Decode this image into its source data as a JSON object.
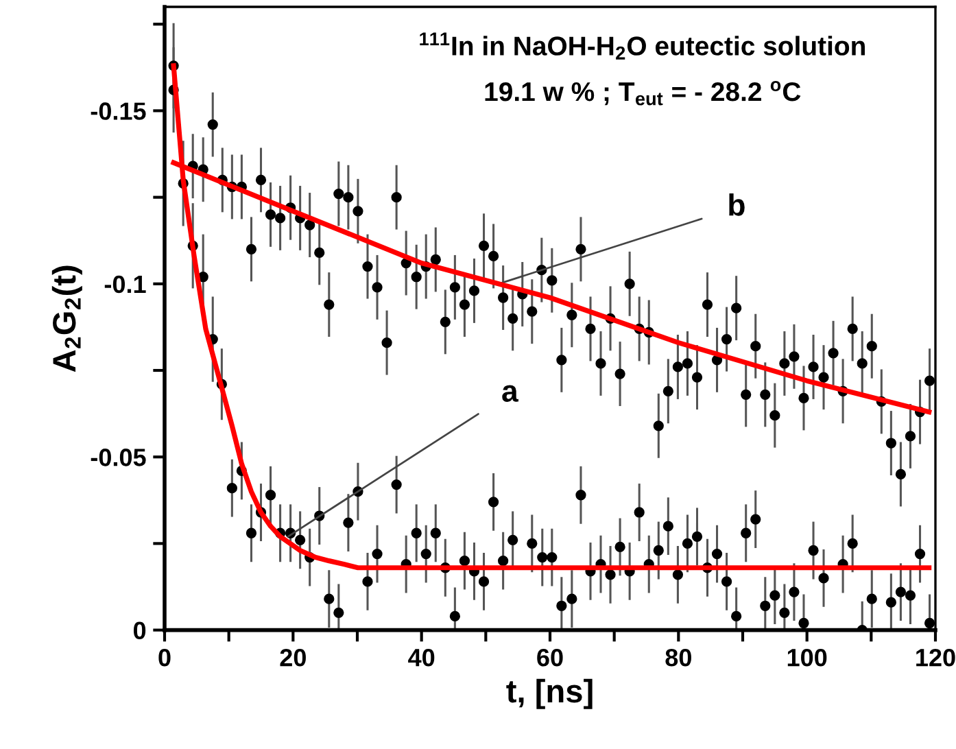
{
  "chart_data": {
    "type": "scatter",
    "title": "$^{111}$In in NaOH-H$_{2}$O eutectic solution",
    "subtitle": "19.1 w % ; T$_{eut}$ = - 28.2 $^{o}$C",
    "xlabel": "t, [ns]",
    "ylabel": "A$_{2}$G$_{2}$(t)",
    "xlim": [
      0,
      120
    ],
    "ylim": [
      0,
      -0.18
    ],
    "xticks": [
      0,
      {
        "value": 10,
        "label": null
      },
      20,
      {
        "value": 30,
        "label": null
      },
      40,
      {
        "value": 50,
        "label": null
      },
      60,
      {
        "value": 70,
        "label": null
      },
      80,
      {
        "value": 90,
        "label": null
      },
      100,
      {
        "value": 110,
        "label": null
      },
      120
    ],
    "yticks": [
      0,
      {
        "value": -0.025,
        "label": null
      },
      -0.05,
      {
        "value": -0.075,
        "label": null
      },
      -0.1,
      {
        "value": -0.125,
        "label": null
      },
      -0.15,
      {
        "value": -0.175,
        "label": null
      }
    ],
    "grid": false,
    "legend": false,
    "marker": "circle",
    "annotations": [
      {
        "text": "a",
        "x": 19.2,
        "y": -0.027
      },
      {
        "text": "b",
        "x": 52,
        "y": -0.1
      }
    ],
    "series": [
      {
        "color": "#000000",
        "x": [
          1.4,
          2.9,
          4.4,
          6.0,
          7.5,
          8.9,
          10.5,
          12.0,
          13.5,
          15.0,
          16.5,
          18.0,
          19.6,
          21.1,
          22.6,
          24.1,
          25.6,
          27.1,
          28.6,
          30.1,
          31.6,
          33.1,
          36.1,
          37.6,
          39.2,
          40.7,
          42.2,
          43.7,
          45.2,
          46.7,
          48.2,
          49.7,
          51.2,
          52.7,
          54.2,
          57.2,
          58.8,
          60.3,
          61.8,
          63.4,
          64.8,
          66.3,
          67.9,
          69.4,
          70.9,
          72.4,
          73.9,
          75.4,
          76.9,
          78.4,
          79.9,
          81.4,
          82.9,
          84.5,
          86.0,
          87.5,
          89.0,
          90.5,
          92.0,
          93.5,
          95.0,
          96.5,
          98.0,
          99.5,
          101.0,
          102.6,
          105.6,
          107.1,
          108.6,
          110.1,
          113.1,
          114.6,
          116.1,
          117.6,
          119.1
        ],
        "values": [
          -0.163,
          -0.129,
          -0.111,
          -0.102,
          -0.084,
          -0.071,
          -0.041,
          -0.046,
          -0.028,
          -0.034,
          -0.039,
          -0.028,
          -0.028,
          -0.026,
          -0.021,
          -0.033,
          -0.009,
          -0.005,
          -0.031,
          -0.04,
          -0.014,
          -0.022,
          -0.042,
          -0.019,
          -0.028,
          -0.022,
          -0.028,
          -0.018,
          -0.004,
          -0.02,
          -0.017,
          -0.014,
          -0.037,
          -0.02,
          -0.026,
          -0.025,
          -0.021,
          -0.021,
          -0.007,
          -0.009,
          -0.039,
          -0.017,
          -0.019,
          -0.016,
          -0.024,
          -0.017,
          -0.034,
          -0.019,
          -0.023,
          -0.03,
          -0.016,
          -0.025,
          -0.027,
          -0.018,
          -0.022,
          -0.014,
          -0.004,
          -0.028,
          -0.032,
          -0.007,
          -0.01,
          -0.005,
          -0.011,
          -0.002,
          -0.023,
          -0.015,
          -0.019,
          -0.025,
          0.0,
          -0.009,
          -0.008,
          -0.011,
          -0.01,
          -0.022,
          -0.002
        ],
        "errors": [
          0.012,
          0.012,
          0.012,
          0.012,
          0.012,
          0.01,
          0.008,
          0.008,
          0.008,
          0.008,
          0.008,
          0.008,
          0.008,
          0.008,
          0.008,
          0.008,
          0.008,
          [
            -0.013,
            0
          ],
          0.008,
          0.008,
          0.008,
          0.008,
          0.008,
          0.008,
          0.008,
          0.008,
          0.008,
          0.008,
          [
            -0.012,
            0
          ],
          0.008,
          0.008,
          0.008,
          0.008,
          0.008,
          0.008,
          0.008,
          0.008,
          0.008,
          [
            -0.015,
            0
          ],
          0.008,
          0.008,
          0.008,
          0.008,
          0.008,
          0.008,
          0.008,
          0.008,
          0.008,
          0.008,
          0.008,
          0.008,
          0.008,
          0.008,
          0.008,
          0.008,
          0.008,
          [
            -0.012,
            0
          ],
          0.008,
          0.008,
          [
            -0.015,
            0
          ],
          0.008,
          [
            -0.013,
            0
          ],
          0.008,
          [
            -0.01,
            0
          ],
          0.008,
          0.008,
          0.008,
          0.008,
          [
            -0.008,
            0
          ],
          0.008,
          0.008,
          0.008,
          0.008,
          0.008,
          [
            -0.01,
            0
          ]
        ]
      },
      {
        "color": "#000000",
        "x": [
          1.4,
          4.4,
          6.0,
          7.5,
          9.0,
          10.5,
          12.0,
          13.5,
          15.0,
          16.5,
          18.0,
          19.6,
          21.1,
          22.6,
          24.1,
          25.6,
          27.1,
          28.6,
          30.1,
          31.6,
          33.1,
          34.6,
          36.1,
          37.6,
          39.2,
          40.7,
          42.2,
          43.7,
          45.2,
          46.7,
          48.2,
          49.7,
          51.2,
          52.7,
          54.2,
          55.7,
          57.2,
          58.7,
          60.3,
          61.8,
          63.4,
          64.8,
          66.3,
          67.9,
          69.4,
          70.9,
          72.4,
          73.9,
          75.4,
          76.9,
          78.4,
          79.9,
          81.4,
          82.9,
          84.5,
          86.0,
          87.5,
          89.0,
          90.5,
          92.0,
          93.5,
          95.0,
          96.5,
          98.0,
          99.5,
          101.0,
          102.6,
          104.1,
          105.6,
          107.1,
          108.6,
          110.1,
          111.6,
          113.1,
          114.6,
          116.1,
          117.6,
          119.1
        ],
        "values": [
          -0.156,
          -0.134,
          -0.133,
          -0.146,
          -0.13,
          -0.128,
          -0.128,
          -0.11,
          -0.13,
          -0.12,
          -0.119,
          -0.122,
          -0.119,
          -0.117,
          -0.109,
          -0.094,
          -0.126,
          -0.125,
          -0.121,
          -0.105,
          -0.099,
          -0.083,
          -0.125,
          -0.106,
          -0.102,
          -0.105,
          -0.107,
          -0.089,
          -0.099,
          -0.094,
          -0.098,
          -0.111,
          -0.108,
          -0.096,
          -0.09,
          -0.097,
          -0.092,
          -0.104,
          -0.101,
          -0.078,
          -0.091,
          -0.11,
          -0.087,
          -0.077,
          -0.09,
          -0.074,
          -0.1,
          -0.087,
          -0.086,
          -0.059,
          -0.069,
          -0.076,
          -0.077,
          -0.073,
          -0.094,
          -0.078,
          -0.084,
          -0.093,
          -0.068,
          -0.082,
          -0.068,
          -0.062,
          -0.077,
          -0.079,
          -0.067,
          -0.076,
          -0.073,
          -0.08,
          -0.069,
          -0.087,
          -0.077,
          -0.082,
          -0.066,
          -0.054,
          -0.045,
          -0.056,
          -0.063,
          -0.072
        ],
        "errors": [
          0.012,
          0.009,
          0.009,
          0.009,
          0.009,
          0.009,
          0.009,
          0.009,
          0.009,
          0.009,
          0.009,
          0.009,
          0.009,
          0.009,
          0.009,
          0.009,
          0.009,
          0.009,
          0.009,
          0.009,
          0.009,
          0.009,
          0.009,
          0.009,
          0.009,
          0.009,
          0.009,
          0.009,
          0.009,
          0.009,
          0.009,
          0.009,
          0.009,
          0.009,
          0.009,
          0.009,
          0.009,
          0.009,
          0.009,
          0.009,
          0.009,
          0.009,
          0.009,
          0.009,
          0.009,
          0.009,
          0.009,
          0.009,
          0.009,
          0.009,
          0.009,
          0.009,
          0.009,
          0.009,
          0.009,
          0.009,
          0.009,
          0.009,
          0.009,
          0.009,
          0.009,
          0.009,
          0.009,
          0.009,
          0.009,
          0.009,
          0.009,
          0.009,
          0.009,
          0.009,
          0.009,
          0.009,
          0.009,
          0.009,
          0.009,
          0.009,
          0.009,
          0.009
        ]
      },
      {
        "type": "line",
        "color": "#ff0000",
        "marker": "none",
        "line_style": "solid",
        "x": [
          1.4,
          2.9,
          4.6,
          6.4,
          8.9,
          10.5,
          12.0,
          13.5,
          15.0,
          16.5,
          18.0,
          21.1,
          23.5,
          25.6,
          28.0,
          30.1,
          40,
          60,
          80,
          100,
          119
        ],
        "values": [
          -0.163,
          -0.13,
          -0.108,
          -0.087,
          -0.07,
          -0.059,
          -0.048,
          -0.04,
          -0.034,
          -0.03,
          -0.027,
          -0.023,
          -0.021,
          -0.02,
          -0.019,
          -0.018,
          -0.018,
          -0.018,
          -0.018,
          -0.018,
          -0.018
        ]
      },
      {
        "type": "line",
        "color": "#ff0000",
        "marker": "none",
        "line_style": "solid",
        "x": [
          1.4,
          20,
          40,
          60,
          80,
          100,
          119
        ],
        "values": [
          -0.135,
          -0.121,
          -0.106,
          -0.096,
          -0.083,
          -0.072,
          -0.063
        ]
      }
    ]
  }
}
